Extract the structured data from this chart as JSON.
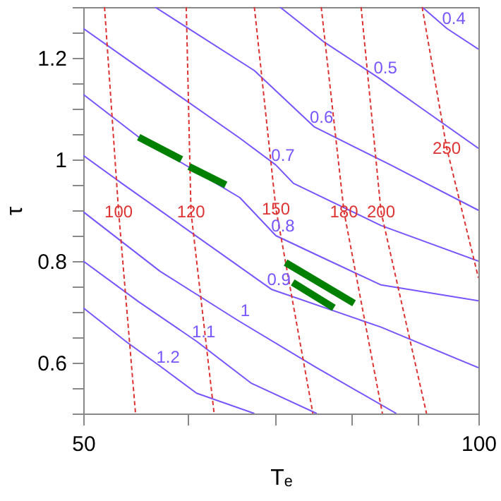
{
  "chart_data": {
    "type": "line",
    "xlabel": "Tₑ",
    "ylabel": "τ",
    "log": "x",
    "xlim": [
      50,
      100
    ],
    "ylim": [
      0.5,
      1.3
    ],
    "xticks": [
      50,
      {
        "value": 60,
        "label": null
      },
      {
        "value": 70,
        "label": null
      },
      {
        "value": 80,
        "label": null
      },
      {
        "value": 90,
        "label": null
      },
      100
    ],
    "yticks": [
      {
        "value": 0.5,
        "label": null
      },
      {
        "value": 0.55,
        "label": null
      },
      0.6,
      {
        "value": 0.65,
        "label": null
      },
      {
        "value": 0.7,
        "label": null
      },
      {
        "value": 0.75,
        "label": null
      },
      0.8,
      {
        "value": 0.85,
        "label": null
      },
      {
        "value": 0.9,
        "label": null
      },
      {
        "value": 0.95,
        "label": null
      },
      1,
      {
        "value": 1.05,
        "label": null
      },
      {
        "value": 1.1,
        "label": null
      },
      {
        "value": 1.15,
        "label": null
      },
      1.2,
      {
        "value": 1.25,
        "label": null
      },
      {
        "value": 1.3,
        "label": null
      }
    ],
    "grid": false,
    "marker": "none",
    "series": [
      {
        "name": "0.4",
        "color": "#7755ff",
        "line_style": "solid",
        "x": [
          90.6,
          94.6,
          100
        ],
        "values": [
          1.3,
          1.258,
          1.217
        ]
      },
      {
        "name": "0.5",
        "color": "#7755ff",
        "line_style": "solid",
        "x": [
          70.6,
          76.3,
          83.9,
          90.6,
          100
        ],
        "values": [
          1.3,
          1.231,
          1.161,
          1.1,
          1.022
        ]
      },
      {
        "name": "0.6",
        "color": "#7755ff",
        "line_style": "solid",
        "x": [
          56.7,
          67.5,
          75.0,
          85.6,
          100
        ],
        "values": [
          1.3,
          1.175,
          1.064,
          0.99,
          0.9
        ]
      },
      {
        "name": "0.7",
        "color": "#7755ff",
        "line_style": "solid",
        "x": [
          50,
          55.1,
          65.8,
          70.1,
          72.3,
          84.3,
          100
        ],
        "values": [
          1.258,
          1.181,
          1.042,
          0.989,
          0.953,
          0.87,
          0.8
        ]
      },
      {
        "name": "0.8",
        "color": "#7755ff",
        "line_style": "solid",
        "x": [
          50,
          55.1,
          65.8,
          70.1,
          75.9,
          84.3,
          100
        ],
        "values": [
          1.128,
          1.044,
          0.925,
          0.85,
          0.808,
          0.753,
          0.722
        ]
      },
      {
        "name": "0.9",
        "color": "#7755ff",
        "line_style": "solid",
        "x": [
          50,
          53.5,
          69.6,
          84.3,
          100
        ],
        "values": [
          1.008,
          0.953,
          0.744,
          0.67,
          0.59
        ]
      },
      {
        "name": "1",
        "color": "#7755ff",
        "line_style": "solid",
        "x": [
          50,
          57.2,
          65.6,
          75.3,
          86.6
        ],
        "values": [
          0.897,
          0.78,
          0.683,
          0.59,
          0.5
        ]
      },
      {
        "name": "1.1",
        "color": "#7755ff",
        "line_style": "solid",
        "x": [
          50,
          55.1,
          61.0,
          67.1,
          75.3
        ],
        "values": [
          0.8,
          0.72,
          0.642,
          0.56,
          0.5
        ]
      },
      {
        "name": "1.2",
        "color": "#7755ff",
        "line_style": "solid",
        "x": [
          50,
          54.0,
          57.3,
          61.0,
          67.5
        ],
        "values": [
          0.708,
          0.64,
          0.592,
          0.54,
          0.5
        ]
      },
      {
        "name": "100",
        "color": "#dd3333",
        "line_style": "dashed",
        "x": [
          51.9,
          53.2,
          54.8
        ],
        "values": [
          1.3,
          0.897,
          0.5
        ]
      },
      {
        "name": "120",
        "color": "#dd3333",
        "line_style": "dashed",
        "x": [
          59.9,
          60.4,
          62.9
        ],
        "values": [
          1.3,
          0.897,
          0.5
        ]
      },
      {
        "name": "150",
        "color": "#dd3333",
        "line_style": "dashed",
        "x": [
          67.5,
          70.1,
          74.8
        ],
        "values": [
          1.3,
          0.903,
          0.5
        ]
      },
      {
        "name": "180",
        "color": "#dd3333",
        "line_style": "dashed",
        "x": [
          75.9,
          79.0,
          84.5
        ],
        "values": [
          1.3,
          0.897,
          0.5
        ]
      },
      {
        "name": "200",
        "color": "#dd3333",
        "line_style": "dashed",
        "x": [
          81.4,
          84.3,
          91.3
        ],
        "values": [
          1.3,
          0.897,
          0.5
        ]
      },
      {
        "name": "250",
        "color": "#dd3333",
        "line_style": "dashed",
        "x": [
          90.6,
          94.6,
          100
        ],
        "values": [
          1.3,
          1.022,
          0.767
        ]
      },
      {
        "color": "#008000",
        "line_style": "solid",
        "x": [
          55.1,
          59.4
        ],
        "values": [
          1.044,
          1.0
        ]
      },
      {
        "color": "#008000",
        "line_style": "solid",
        "x": [
          60.2,
          64.2
        ],
        "values": [
          0.986,
          0.95
        ]
      },
      {
        "color": "#008000",
        "line_style": "solid",
        "x": [
          71.3,
          80.4
        ],
        "values": [
          0.797,
          0.717
        ]
      },
      {
        "color": "#008000",
        "line_style": "solid",
        "x": [
          72.2,
          77.6
        ],
        "values": [
          0.758,
          0.708
        ]
      }
    ]
  }
}
